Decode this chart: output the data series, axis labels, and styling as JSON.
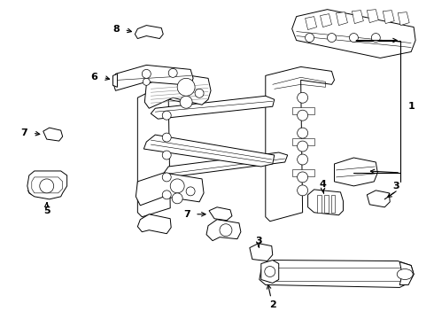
{
  "bg_color": "#ffffff",
  "line_color": "#000000",
  "fig_width": 4.9,
  "fig_height": 3.6,
  "dpi": 100,
  "lw": 0.7,
  "lw_thin": 0.4,
  "parts": {
    "label_fontsize": 8
  }
}
